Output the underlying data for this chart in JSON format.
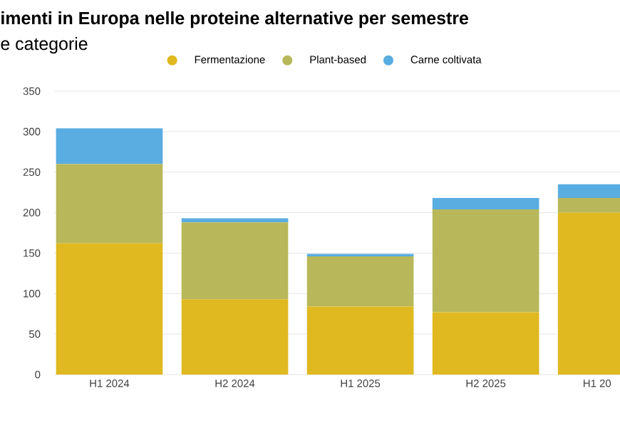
{
  "chart_data": {
    "type": "bar",
    "stacked": true,
    "title": "imenti in Europa nelle proteine alternative per semestre",
    "subtitle": "e categorie",
    "categories": [
      "H1 2024",
      "H2 2024",
      "H1 2025",
      "H2 2025",
      "H1 20"
    ],
    "series": [
      {
        "name": "Fermentazione",
        "color": "#e0b820",
        "values": [
          162,
          93,
          84,
          77,
          200
        ]
      },
      {
        "name": "Plant-based",
        "color": "#b8b85a",
        "values": [
          98,
          95,
          62,
          127,
          18
        ]
      },
      {
        "name": "Carne coltivata",
        "color": "#5aade0",
        "values": [
          44,
          5,
          3,
          14,
          17
        ]
      }
    ],
    "ylim": [
      0,
      350
    ],
    "yticks": [
      0,
      50,
      100,
      150,
      200,
      250,
      300,
      350
    ],
    "grid": "y",
    "legend": "top"
  }
}
